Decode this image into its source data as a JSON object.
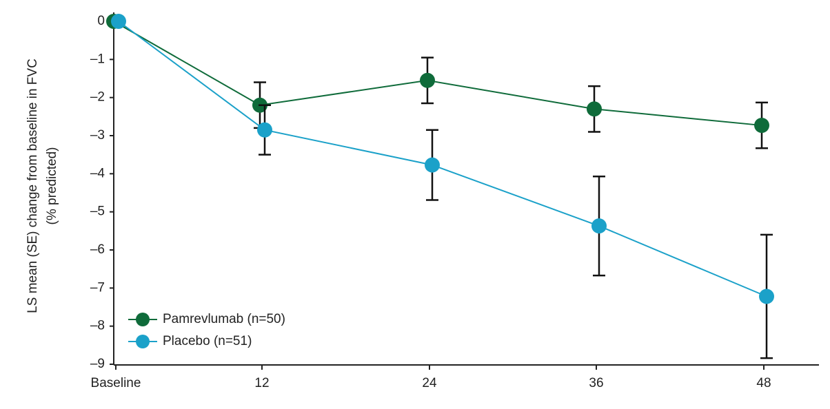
{
  "chart_data": {
    "type": "line",
    "ylabel": [
      "LS mean (SE) change from baseline in FVC",
      "(% predicted)"
    ],
    "categories": [
      "Baseline",
      "12",
      "24",
      "36",
      "48"
    ],
    "series": [
      {
        "name": "Pamrevlumab (n=50)",
        "color": "#0f6b3a",
        "values": [
          0,
          -2.2,
          -1.55,
          -2.3,
          -2.73
        ],
        "error": [
          null,
          0.6,
          0.6,
          0.6,
          0.6
        ]
      },
      {
        "name": "Placebo (n=51)",
        "color": "#1ba1c9",
        "values": [
          0,
          -2.85,
          -3.77,
          -5.37,
          -7.22
        ],
        "error": [
          null,
          0.65,
          0.92,
          1.3,
          1.62
        ]
      }
    ],
    "ylim": [
      -9,
      0
    ],
    "yticks": [
      {
        "value": 0,
        "label": "0"
      },
      {
        "value": -1,
        "label": "–1"
      },
      {
        "value": -2,
        "label": "–2"
      },
      {
        "value": -3,
        "label": "–3"
      },
      {
        "value": -4,
        "label": "–4"
      },
      {
        "value": -5,
        "label": "–5"
      },
      {
        "value": -6,
        "label": "–6"
      },
      {
        "value": -7,
        "label": "–7"
      },
      {
        "value": -8,
        "label": "–8"
      },
      {
        "value": -9,
        "label": "–9"
      }
    ],
    "legend": "lower-left"
  }
}
